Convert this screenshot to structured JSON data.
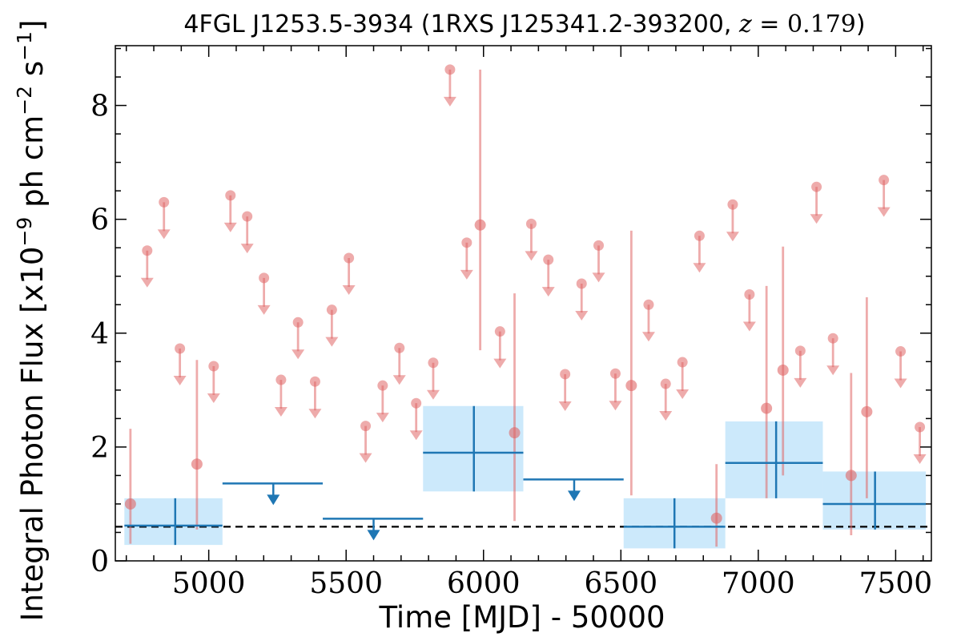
{
  "chart_data": {
    "type": "scatter",
    "title": {
      "source": "4FGL J1253.5-3934",
      "paren_open": " (1RXS J125341.2-393200, ",
      "z_symbol": "z",
      "z_equals": " = ",
      "z_value": "0.179",
      "paren_close": ")"
    },
    "xlabel": "Time [MJD] - 50000",
    "ylabel": {
      "text": "Integral Photon Flux [x10",
      "exp1": "−9",
      "mid": " ph cm",
      "exp2": "−2",
      "s": " s",
      "exp3": "−1",
      "close": "]"
    },
    "xlim": [
      4660,
      7630
    ],
    "ylim": [
      0,
      9.05
    ],
    "xticks": [
      5000,
      5500,
      6000,
      6500,
      7000,
      7500
    ],
    "xtick_labels": [
      "5000",
      "5500",
      "6000",
      "6500",
      "7000",
      "7500"
    ],
    "yticks": [
      0,
      2,
      4,
      6,
      8
    ],
    "ytick_labels": [
      "0",
      "2",
      "4",
      "6",
      "8"
    ],
    "reference_level": 0.6,
    "colors": {
      "short_bin": "#e06666",
      "long_bin": "#1f77b4",
      "long_bin_band": "#cce9fb",
      "reference": "#000000"
    },
    "series": [
      {
        "kind": "detection",
        "bin_width": "short",
        "points": [
          {
            "x": 4715,
            "y": 1.0,
            "lo": 0.3,
            "hi": 2.32
          },
          {
            "x": 4957,
            "y": 1.7,
            "lo": 0.55,
            "hi": 3.53
          },
          {
            "x": 5988,
            "y": 5.9,
            "lo": 3.7,
            "hi": 8.63
          },
          {
            "x": 6113,
            "y": 2.25,
            "lo": 0.7,
            "hi": 4.7
          },
          {
            "x": 6538,
            "y": 3.08,
            "lo": 1.15,
            "hi": 5.8
          },
          {
            "x": 6848,
            "y": 0.75,
            "lo": 0.25,
            "hi": 1.7
          },
          {
            "x": 7030,
            "y": 2.68,
            "lo": 1.1,
            "hi": 4.83
          },
          {
            "x": 7090,
            "y": 3.35,
            "lo": 1.5,
            "hi": 5.52
          },
          {
            "x": 7338,
            "y": 1.5,
            "lo": 0.45,
            "hi": 3.3
          },
          {
            "x": 7395,
            "y": 2.62,
            "lo": 1.1,
            "hi": 4.63
          }
        ]
      },
      {
        "kind": "upper_limit",
        "bin_width": "short",
        "points": [
          {
            "x": 4776,
            "y": 5.45
          },
          {
            "x": 4837,
            "y": 6.3
          },
          {
            "x": 4895,
            "y": 3.73
          },
          {
            "x": 5018,
            "y": 3.42
          },
          {
            "x": 5079,
            "y": 6.42
          },
          {
            "x": 5140,
            "y": 6.05
          },
          {
            "x": 5201,
            "y": 4.97
          },
          {
            "x": 5263,
            "y": 3.18
          },
          {
            "x": 5325,
            "y": 4.19
          },
          {
            "x": 5387,
            "y": 3.15
          },
          {
            "x": 5448,
            "y": 4.41
          },
          {
            "x": 5510,
            "y": 5.32
          },
          {
            "x": 5571,
            "y": 2.37
          },
          {
            "x": 5633,
            "y": 3.08
          },
          {
            "x": 5694,
            "y": 3.74
          },
          {
            "x": 5755,
            "y": 2.77
          },
          {
            "x": 5817,
            "y": 3.48
          },
          {
            "x": 5878,
            "y": 8.63
          },
          {
            "x": 5939,
            "y": 5.59
          },
          {
            "x": 6060,
            "y": 4.03
          },
          {
            "x": 6174,
            "y": 5.92
          },
          {
            "x": 6236,
            "y": 5.29
          },
          {
            "x": 6297,
            "y": 3.28
          },
          {
            "x": 6357,
            "y": 4.87
          },
          {
            "x": 6419,
            "y": 5.54
          },
          {
            "x": 6480,
            "y": 3.29
          },
          {
            "x": 6601,
            "y": 4.5
          },
          {
            "x": 6663,
            "y": 3.11
          },
          {
            "x": 6724,
            "y": 3.49
          },
          {
            "x": 6786,
            "y": 5.71
          },
          {
            "x": 6907,
            "y": 6.26
          },
          {
            "x": 6968,
            "y": 4.68
          },
          {
            "x": 7153,
            "y": 3.69
          },
          {
            "x": 7212,
            "y": 6.57
          },
          {
            "x": 7272,
            "y": 3.91
          },
          {
            "x": 7457,
            "y": 6.69
          },
          {
            "x": 7518,
            "y": 3.68
          },
          {
            "x": 7588,
            "y": 2.35
          }
        ]
      },
      {
        "kind": "detection",
        "bin_width": "long",
        "points": [
          {
            "x": 4878,
            "x0": 4693,
            "x1": 5050,
            "y": 0.62,
            "lo": 0.28,
            "hi": 1.1
          },
          {
            "x": 5965,
            "x0": 5780,
            "x1": 6145,
            "y": 1.9,
            "lo": 1.22,
            "hi": 2.72
          },
          {
            "x": 6695,
            "x0": 6510,
            "x1": 6880,
            "y": 0.6,
            "lo": 0.22,
            "hi": 1.1
          },
          {
            "x": 7065,
            "x0": 6880,
            "x1": 7235,
            "y": 1.72,
            "lo": 1.1,
            "hi": 2.45
          },
          {
            "x": 7425,
            "x0": 7235,
            "x1": 7610,
            "y": 1.0,
            "lo": 0.55,
            "hi": 1.57
          }
        ]
      },
      {
        "kind": "upper_limit",
        "bin_width": "long",
        "points": [
          {
            "x": 5235,
            "x0": 5050,
            "x1": 5415,
            "y": 1.36
          },
          {
            "x": 5600,
            "x0": 5415,
            "x1": 5780,
            "y": 0.74
          },
          {
            "x": 6330,
            "x0": 6145,
            "x1": 6510,
            "y": 1.43
          }
        ]
      }
    ]
  }
}
